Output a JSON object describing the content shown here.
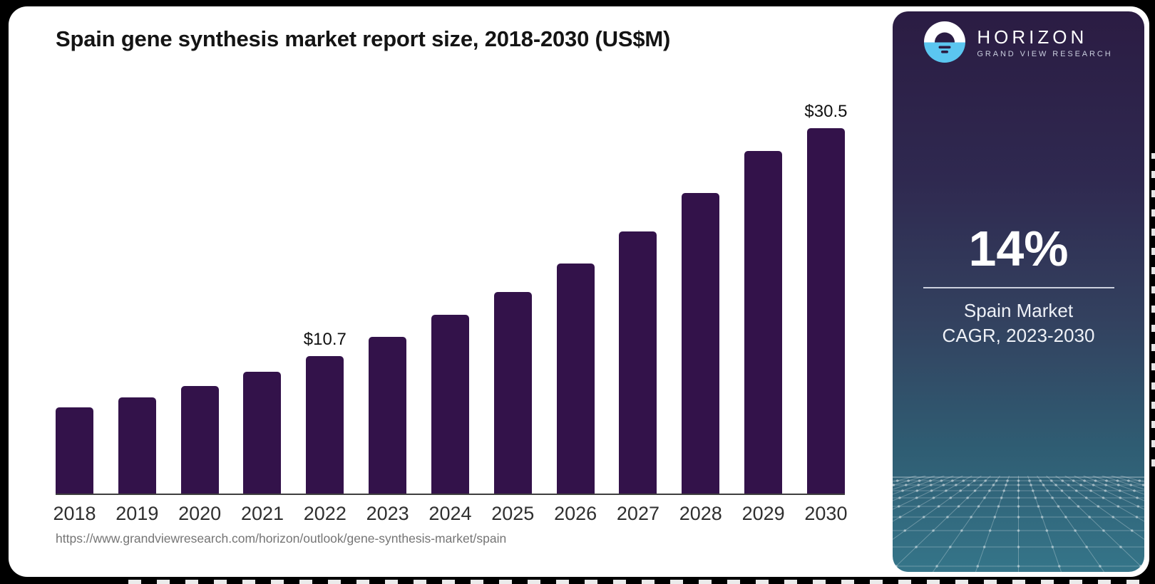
{
  "title": "Spain gene synthesis market report size, 2018-2030 (US$M)",
  "source_url": "https://www.grandviewresearch.com/horizon/outlook/gene-synthesis-market/spain",
  "chart_data": {
    "type": "bar",
    "title": "Spain gene synthesis market report size, 2018-2030 (US$M)",
    "categories": [
      "2018",
      "2019",
      "2020",
      "2021",
      "2022",
      "2023",
      "2024",
      "2025",
      "2026",
      "2027",
      "2028",
      "2029",
      "2030"
    ],
    "values": [
      6.7,
      7.5,
      8.4,
      9.5,
      10.7,
      12.2,
      13.9,
      15.7,
      17.9,
      20.4,
      23.4,
      26.7,
      30.5
    ],
    "data_labels": {
      "2022": "$10.7",
      "2030": "$30.5"
    },
    "xlabel": "",
    "ylabel": "",
    "ylim": [
      0,
      30.5
    ],
    "grid": false,
    "legend": false,
    "bar_color": "#33124A",
    "axis_color": "#3F3F3F"
  },
  "sidebar": {
    "logo": {
      "brand": "HORIZON",
      "sub_brand": "GRAND VIEW RESEARCH",
      "icon": "horizon-sun-logo"
    },
    "stat_value": "14%",
    "stat_label_line1": "Spain Market",
    "stat_label_line2": "CAGR, 2023-2030",
    "colors": {
      "gradient_top": "#2B1C43",
      "gradient_bottom": "#357589",
      "logo_blue": "#5BC6F0",
      "text": "#FFFFFF"
    }
  }
}
